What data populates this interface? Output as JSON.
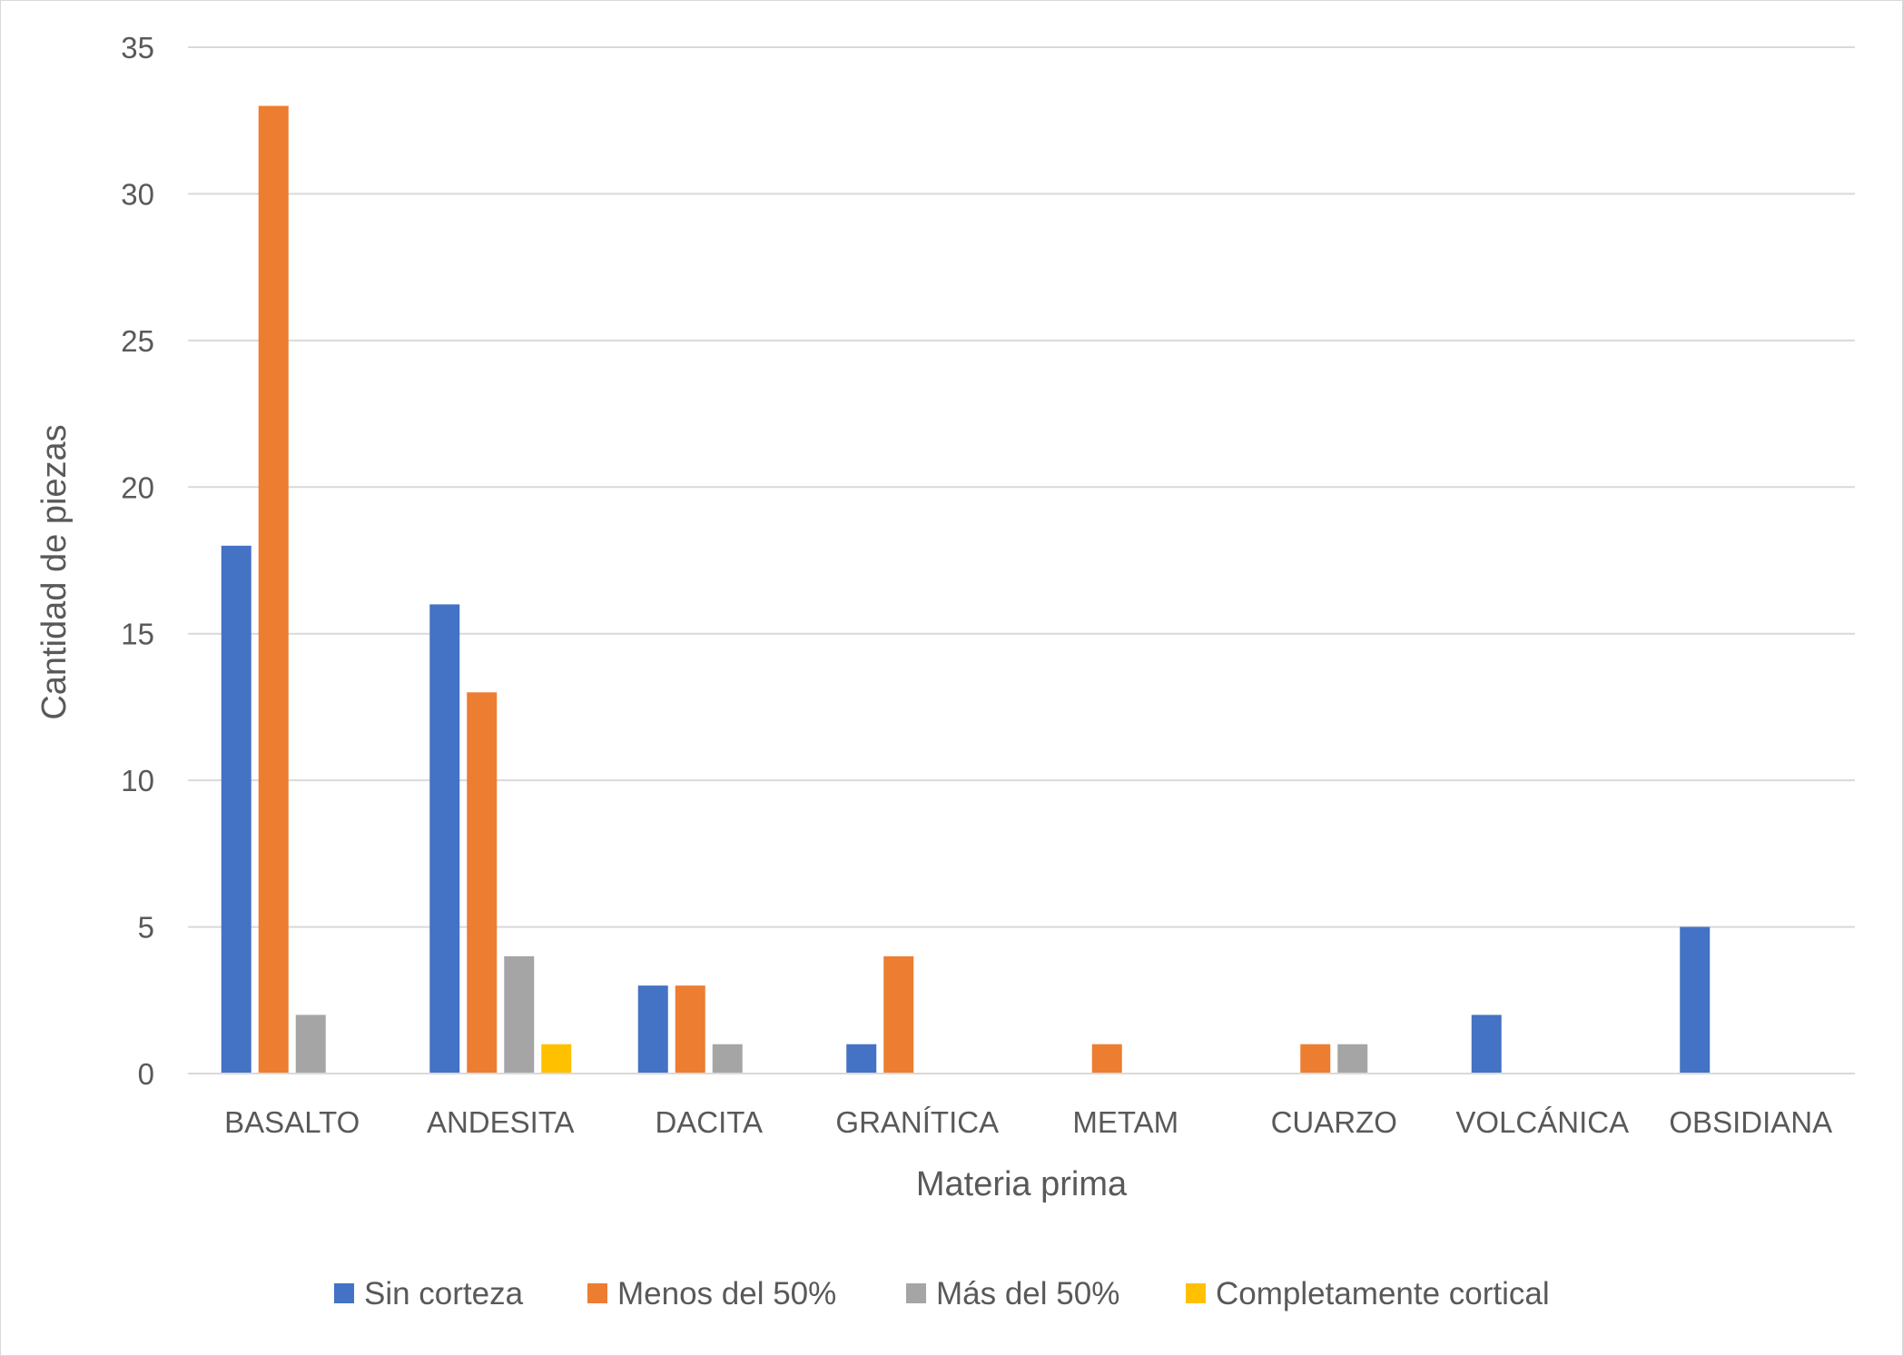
{
  "chart_data": {
    "type": "bar",
    "xlabel": "Materia prima",
    "ylabel": "Cantidad de piezas",
    "ylim": [
      0,
      35
    ],
    "yticks": [
      0,
      5,
      10,
      15,
      20,
      25,
      30,
      35
    ],
    "grid": true,
    "legend_position": "bottom",
    "categories": [
      "BASALTO",
      "ANDESITA",
      "DACITA",
      "GRANÍTICA",
      "METAM",
      "CUARZO",
      "VOLCÁNICA",
      "OBSIDIANA"
    ],
    "series": [
      {
        "name": "Sin corteza",
        "color": "#4472C4",
        "values": [
          18,
          16,
          3,
          1,
          0,
          0,
          2,
          5
        ]
      },
      {
        "name": "Menos del 50%",
        "color": "#ED7D31",
        "values": [
          33,
          13,
          3,
          4,
          1,
          1,
          0,
          0
        ]
      },
      {
        "name": "Más del 50%",
        "color": "#A5A5A5",
        "values": [
          2,
          4,
          1,
          0,
          0,
          1,
          0,
          0
        ]
      },
      {
        "name": "Completamente cortical",
        "color": "#FFC000",
        "values": [
          0,
          1,
          0,
          0,
          0,
          0,
          0,
          0
        ]
      }
    ]
  }
}
